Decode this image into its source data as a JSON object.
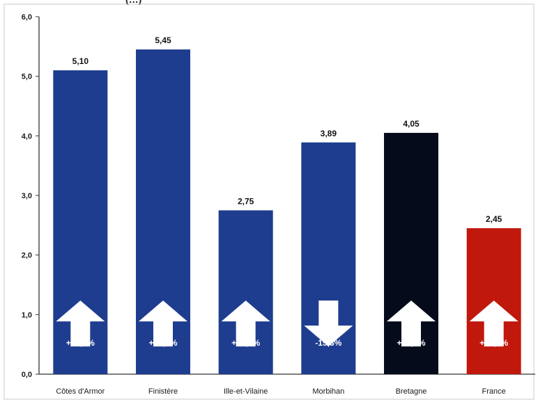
{
  "chart_data": {
    "type": "bar",
    "categories": [
      "Côtes d'Armor",
      "Finistère",
      "Ille-et-Vilaine",
      "Morbihan",
      "Bretagne",
      "France"
    ],
    "values": [
      5.1,
      5.45,
      2.75,
      3.89,
      4.05,
      2.45
    ],
    "value_labels": [
      "5,10",
      "5,45",
      "2,75",
      "3,89",
      "4,05",
      "2,45"
    ],
    "changes": [
      "+38,1%",
      "+15,4%",
      "+15,4%",
      "-15,3%",
      "+10,7%",
      "+37,8%"
    ],
    "change_directions": [
      "up",
      "up",
      "up",
      "down",
      "up",
      "up"
    ],
    "colors": [
      "#1f3d8f",
      "#1f3d8f",
      "#1f3d8f",
      "#1f3d8f",
      "#060b1c",
      "#c0180c"
    ],
    "ylim": [
      0,
      6
    ],
    "yticks": [
      "0,0",
      "1,0",
      "2,0",
      "3,0",
      "4,0",
      "5,0",
      "6,0"
    ],
    "title_fragment": "(…)",
    "grid": false,
    "legend": "none"
  }
}
